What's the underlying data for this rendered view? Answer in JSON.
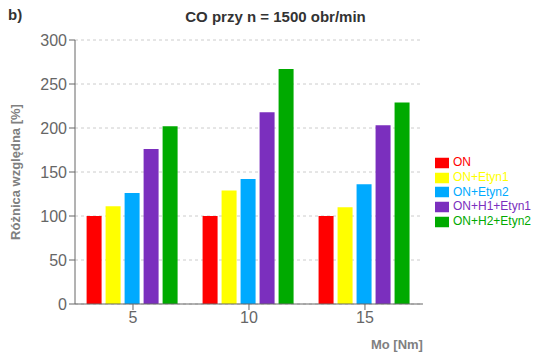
{
  "chart_data": {
    "type": "bar",
    "title": "CO przy n = 1500 obr/min",
    "xlabel": "Mo [Nm]",
    "ylabel": "Różnica względna [%]",
    "annotations": [
      "b)"
    ],
    "categories": [
      5,
      10,
      15
    ],
    "series": [
      {
        "name": "ON",
        "color": "#ff0000",
        "values": [
          100,
          100,
          100
        ]
      },
      {
        "name": "ON+Etyn1",
        "color": "#ffff00",
        "values": [
          111,
          129,
          110
        ]
      },
      {
        "name": "ON+Etyn2",
        "color": "#00aaff",
        "values": [
          126,
          142,
          136
        ]
      },
      {
        "name": "ON+H1+Etyn1",
        "color": "#7b2fbe",
        "values": [
          176,
          218,
          203
        ]
      },
      {
        "name": "ON+H2+Etyn2",
        "color": "#00aa00",
        "values": [
          202,
          267,
          229
        ]
      }
    ],
    "ylim": [
      0,
      300
    ],
    "yticks": [
      0,
      50,
      100,
      150,
      200,
      250,
      300
    ],
    "grid": true,
    "legend": "right"
  }
}
